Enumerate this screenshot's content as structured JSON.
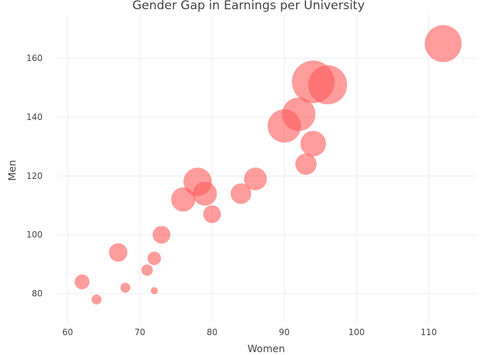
{
  "chart_data": {
    "type": "scatter",
    "title": "Gender Gap in Earnings per University",
    "xlabel": "Women",
    "ylabel": "Men",
    "xlim": [
      58.5,
      116.5
    ],
    "ylim": [
      70,
      175
    ],
    "xticks": [
      60,
      70,
      80,
      90,
      100,
      110
    ],
    "yticks": [
      80,
      100,
      120,
      140,
      160
    ],
    "grid": true,
    "legend": false,
    "marker_color": "#ff5a5a",
    "marker_opacity": 0.6,
    "series": [
      {
        "points": [
          {
            "x": 96,
            "y": 151,
            "size": 55
          },
          {
            "x": 94,
            "y": 152,
            "size": 60
          },
          {
            "x": 112,
            "y": 165,
            "size": 52
          },
          {
            "x": 92,
            "y": 141,
            "size": 47
          },
          {
            "x": 90,
            "y": 137,
            "size": 47
          },
          {
            "x": 94,
            "y": 131,
            "size": 36
          },
          {
            "x": 93,
            "y": 124,
            "size": 30
          },
          {
            "x": 86,
            "y": 119,
            "size": 32
          },
          {
            "x": 84,
            "y": 114,
            "size": 29
          },
          {
            "x": 78,
            "y": 118,
            "size": 40
          },
          {
            "x": 79,
            "y": 114,
            "size": 34
          },
          {
            "x": 76,
            "y": 112,
            "size": 34
          },
          {
            "x": 80,
            "y": 107,
            "size": 25
          },
          {
            "x": 73,
            "y": 100,
            "size": 25
          },
          {
            "x": 67,
            "y": 94,
            "size": 26
          },
          {
            "x": 72,
            "y": 92,
            "size": 19
          },
          {
            "x": 71,
            "y": 88,
            "size": 16
          },
          {
            "x": 62,
            "y": 84,
            "size": 21
          },
          {
            "x": 68,
            "y": 82,
            "size": 14
          },
          {
            "x": 72,
            "y": 81,
            "size": 10
          },
          {
            "x": 64,
            "y": 78,
            "size": 14
          }
        ]
      }
    ]
  }
}
